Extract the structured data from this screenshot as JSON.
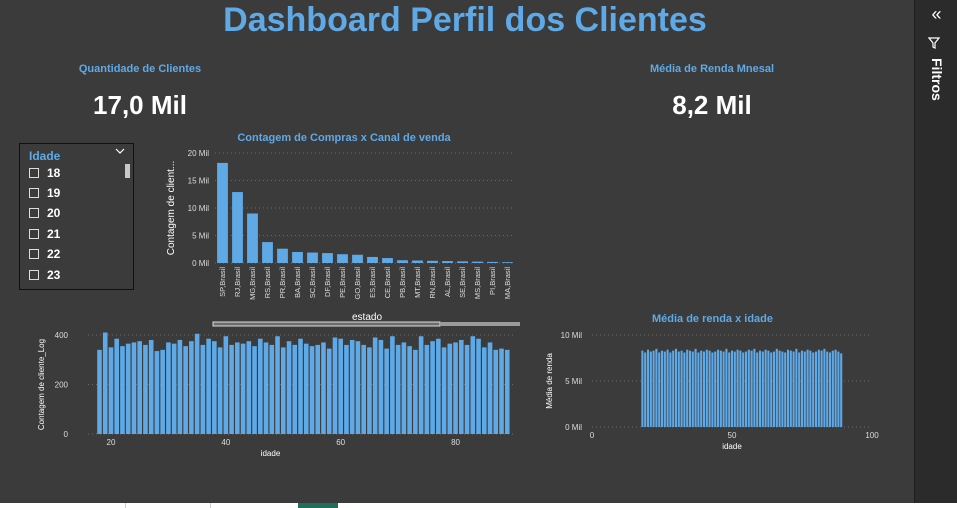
{
  "title": "Dashboard Perfil dos Clientes",
  "filters_pane": {
    "label": "Filtros",
    "collapse_icon": "double-chevron-left-icon",
    "filter_icon": "funnel-icon"
  },
  "cards": [
    {
      "label": "Quantidade de Clientes",
      "value": "17,0 Mil"
    },
    {
      "label": "Média de Renda Mnesal",
      "value": "8,2 Mil"
    }
  ],
  "slicer": {
    "header": "Idade",
    "items": [
      "18",
      "19",
      "20",
      "21",
      "22",
      "23"
    ]
  },
  "colors": {
    "accent": "#5ea9e6",
    "bar": "#5ea9e6",
    "background": "#3b3b3b",
    "grid": "#6a6a6a"
  },
  "chart_data": [
    {
      "type": "bar",
      "title": "Contagem de Compras x Canal de venda",
      "xlabel": "estado",
      "ylabel": "Contagem de client...",
      "ylim": [
        0,
        20000
      ],
      "yticks": [
        "0 Mil",
        "5 Mil",
        "10 Mil",
        "15 Mil",
        "20 Mil"
      ],
      "categories": [
        "SP,Brasil",
        "RJ,Brasil",
        "MG,Brasil",
        "RS,Brasil",
        "PR,Brasil",
        "BA,Brasil",
        "SC,Brasil",
        "DF,Brasil",
        "PE,Brasil",
        "GO,Brasil",
        "ES,Brasil",
        "CE,Brasil",
        "PB,Brasil",
        "MT,Brasil",
        "RN,Brasil",
        "AL,Brasil",
        "SE,Brasil",
        "MS,Brasil",
        "PI,Brasil",
        "MA,Brasil"
      ],
      "values": [
        18200,
        12900,
        9000,
        3800,
        2600,
        2000,
        1900,
        1800,
        1600,
        1500,
        1100,
        900,
        500,
        450,
        400,
        350,
        300,
        250,
        200,
        150
      ]
    },
    {
      "type": "bar",
      "title": "",
      "xlabel": "idade",
      "ylabel": "Contagem de cliente_Log",
      "xlim": [
        16,
        90
      ],
      "ylim": [
        0,
        400
      ],
      "xticks": [
        "20",
        "40",
        "60",
        "80"
      ],
      "yticks": [
        "0",
        "200",
        "400"
      ],
      "x": [
        18,
        19,
        20,
        21,
        22,
        23,
        24,
        25,
        26,
        27,
        28,
        29,
        30,
        31,
        32,
        33,
        34,
        35,
        36,
        37,
        38,
        39,
        40,
        41,
        42,
        43,
        44,
        45,
        46,
        47,
        48,
        49,
        50,
        51,
        52,
        53,
        54,
        55,
        56,
        57,
        58,
        59,
        60,
        61,
        62,
        63,
        64,
        65,
        66,
        67,
        68,
        69,
        70,
        71,
        72,
        73,
        74,
        75,
        76,
        77,
        78,
        79,
        80,
        81,
        82,
        83,
        84,
        85,
        86,
        87,
        88,
        89
      ],
      "values": [
        340,
        410,
        350,
        385,
        355,
        365,
        370,
        375,
        360,
        380,
        335,
        340,
        370,
        365,
        380,
        355,
        375,
        405,
        360,
        385,
        375,
        350,
        395,
        360,
        370,
        365,
        375,
        355,
        385,
        370,
        360,
        395,
        350,
        375,
        360,
        385,
        365,
        355,
        360,
        370,
        345,
        390,
        385,
        360,
        380,
        375,
        360,
        350,
        390,
        380,
        345,
        395,
        360,
        370,
        355,
        340,
        395,
        360,
        375,
        385,
        350,
        365,
        370,
        380,
        360,
        395,
        385,
        350,
        370,
        340,
        345,
        340
      ]
    },
    {
      "type": "bar",
      "title": "Média de renda x idade",
      "xlabel": "idade",
      "ylabel": "Média de renda",
      "xlim": [
        0,
        100
      ],
      "ylim": [
        0,
        10000
      ],
      "xticks": [
        "0",
        "50",
        "100"
      ],
      "yticks": [
        "0 Mil",
        "5 Mil",
        "10 Mil"
      ],
      "x": [
        18,
        19,
        20,
        21,
        22,
        23,
        24,
        25,
        26,
        27,
        28,
        29,
        30,
        31,
        32,
        33,
        34,
        35,
        36,
        37,
        38,
        39,
        40,
        41,
        42,
        43,
        44,
        45,
        46,
        47,
        48,
        49,
        50,
        51,
        52,
        53,
        54,
        55,
        56,
        57,
        58,
        59,
        60,
        61,
        62,
        63,
        64,
        65,
        66,
        67,
        68,
        69,
        70,
        71,
        72,
        73,
        74,
        75,
        76,
        77,
        78,
        79,
        80,
        81,
        82,
        83,
        84,
        85,
        86,
        87,
        88,
        89
      ],
      "values": [
        8300,
        8100,
        8400,
        8200,
        8300,
        8500,
        8100,
        8300,
        8200,
        8400,
        8100,
        8300,
        8500,
        8200,
        8300,
        8100,
        8400,
        8300,
        8200,
        8500,
        8100,
        8300,
        8200,
        8400,
        8300,
        8100,
        8200,
        8400,
        8300,
        8200,
        8500,
        8100,
        8300,
        8200,
        8400,
        8300,
        8100,
        8200,
        8400,
        8300,
        8500,
        8100,
        8300,
        8200,
        8400,
        8300,
        8100,
        8200,
        8500,
        8300,
        8200,
        8100,
        8400,
        8300,
        8200,
        8500,
        8100,
        8300,
        8200,
        8400,
        8300,
        8100,
        8200,
        8400,
        8300,
        8500,
        8200,
        8100,
        8300,
        8400,
        8200,
        8000
      ]
    }
  ]
}
